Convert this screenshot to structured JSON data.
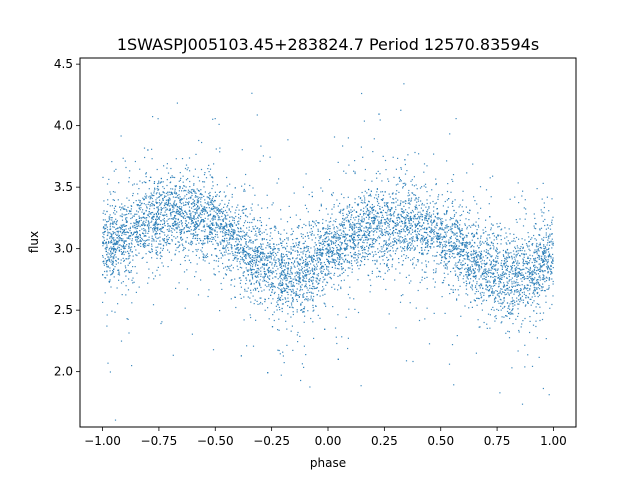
{
  "chart_data": {
    "type": "scatter",
    "title": "1SWASPJ005103.45+283824.7 Period 12570.83594s",
    "xlabel": "phase",
    "ylabel": "flux",
    "xlim": [
      -1.1,
      1.1
    ],
    "ylim": [
      1.55,
      4.55
    ],
    "xticks": [
      -1.0,
      -0.75,
      -0.5,
      -0.25,
      0.0,
      0.25,
      0.5,
      0.75,
      1.0
    ],
    "xtick_labels": [
      "−1.00",
      "−0.75",
      "−0.50",
      "−0.25",
      "0.00",
      "0.25",
      "0.50",
      "0.75",
      "1.00"
    ],
    "yticks": [
      2.0,
      2.5,
      3.0,
      3.5,
      4.0,
      4.5
    ],
    "ytick_labels": [
      "2.0",
      "2.5",
      "3.0",
      "3.5",
      "4.0",
      "4.5"
    ],
    "grid": false,
    "legend": "none",
    "marker_color": "#1f77b4",
    "series": [
      {
        "phase": [
          -1.0,
          -0.9,
          -0.8,
          -0.7,
          -0.6,
          -0.5,
          -0.4,
          -0.3,
          -0.2,
          -0.1,
          0.0,
          0.1,
          0.2,
          0.3,
          0.4,
          0.5,
          0.6,
          0.7,
          0.8,
          0.9,
          1.0
        ],
        "flux_center": [
          3.0,
          3.1,
          3.22,
          3.3,
          3.28,
          3.2,
          3.05,
          2.9,
          2.78,
          2.82,
          2.95,
          3.08,
          3.18,
          3.22,
          3.18,
          3.08,
          2.95,
          2.82,
          2.76,
          2.82,
          2.97
        ],
        "flux_spread": [
          0.15,
          0.15,
          0.15,
          0.15,
          0.15,
          0.15,
          0.15,
          0.15,
          0.17,
          0.16,
          0.15,
          0.15,
          0.15,
          0.15,
          0.15,
          0.15,
          0.15,
          0.15,
          0.17,
          0.16,
          0.15
        ]
      }
    ]
  }
}
